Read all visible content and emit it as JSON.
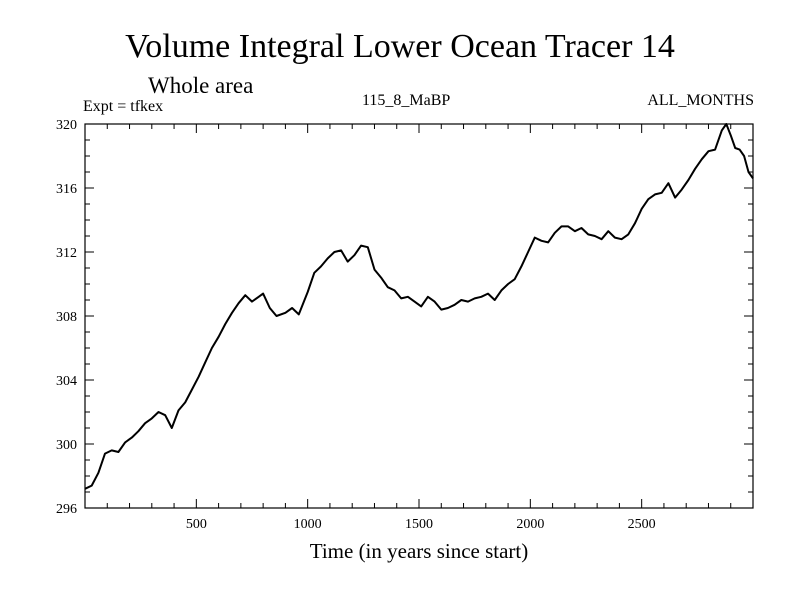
{
  "chart_data": {
    "type": "line",
    "title": "Volume Integral Lower Ocean Tracer 14",
    "subtitle": "Whole area",
    "annotations": {
      "left": "Expt = tfkex",
      "center": "115_8_MaBP",
      "right": "ALL_MONTHS"
    },
    "xlabel": "Time (in years since start)",
    "ylabel": "",
    "xlim": [
      0,
      3000
    ],
    "ylim": [
      296,
      320
    ],
    "xticks": [
      500,
      1000,
      1500,
      2000,
      2500
    ],
    "yticks": [
      296,
      300,
      304,
      308,
      312,
      316,
      320
    ],
    "grid": false,
    "series": [
      {
        "x": [
          0,
          30,
          60,
          90,
          120,
          150,
          180,
          210,
          240,
          270,
          300,
          330,
          360,
          390,
          420,
          450,
          480,
          510,
          540,
          570,
          600,
          630,
          660,
          690,
          720,
          750,
          780,
          800,
          830,
          860,
          900,
          930,
          960,
          1000,
          1030,
          1060,
          1090,
          1120,
          1150,
          1180,
          1210,
          1240,
          1270,
          1300,
          1330,
          1360,
          1390,
          1420,
          1450,
          1480,
          1510,
          1540,
          1570,
          1600,
          1630,
          1660,
          1690,
          1720,
          1750,
          1780,
          1810,
          1840,
          1870,
          1900,
          1930,
          1960,
          1990,
          2020,
          2050,
          2080,
          2110,
          2140,
          2170,
          2200,
          2230,
          2260,
          2290,
          2320,
          2350,
          2380,
          2410,
          2440,
          2470,
          2500,
          2530,
          2560,
          2590,
          2620,
          2650,
          2680,
          2710,
          2740,
          2770,
          2800,
          2830,
          2860,
          2880,
          2900,
          2920,
          2940,
          2960,
          2980,
          3000
        ],
        "values": [
          297.2,
          297.4,
          298.2,
          299.4,
          299.6,
          299.5,
          300.1,
          300.4,
          300.8,
          301.3,
          301.6,
          302.0,
          301.8,
          301.0,
          302.1,
          302.6,
          303.4,
          304.2,
          305.1,
          306.0,
          306.7,
          307.5,
          308.2,
          308.8,
          309.3,
          308.9,
          309.2,
          309.4,
          308.5,
          308.0,
          308.2,
          308.5,
          308.1,
          309.5,
          310.7,
          311.1,
          311.6,
          312.0,
          312.1,
          311.4,
          311.8,
          312.4,
          312.3,
          310.9,
          310.4,
          309.8,
          309.6,
          309.1,
          309.2,
          308.9,
          308.6,
          309.2,
          308.9,
          308.4,
          308.5,
          308.7,
          309.0,
          308.9,
          309.1,
          309.2,
          309.4,
          309.0,
          309.6,
          310.0,
          310.3,
          311.1,
          312.0,
          312.9,
          312.7,
          312.6,
          313.2,
          313.6,
          313.6,
          313.3,
          313.5,
          313.1,
          313.0,
          312.8,
          313.3,
          312.9,
          312.8,
          313.1,
          313.8,
          314.7,
          315.3,
          315.6,
          315.7,
          316.3,
          315.4,
          315.9,
          316.5,
          317.2,
          317.8,
          318.3,
          318.4,
          319.6,
          320.0,
          319.3,
          318.5,
          318.4,
          318.0,
          317.0,
          316.6
        ]
      }
    ]
  }
}
